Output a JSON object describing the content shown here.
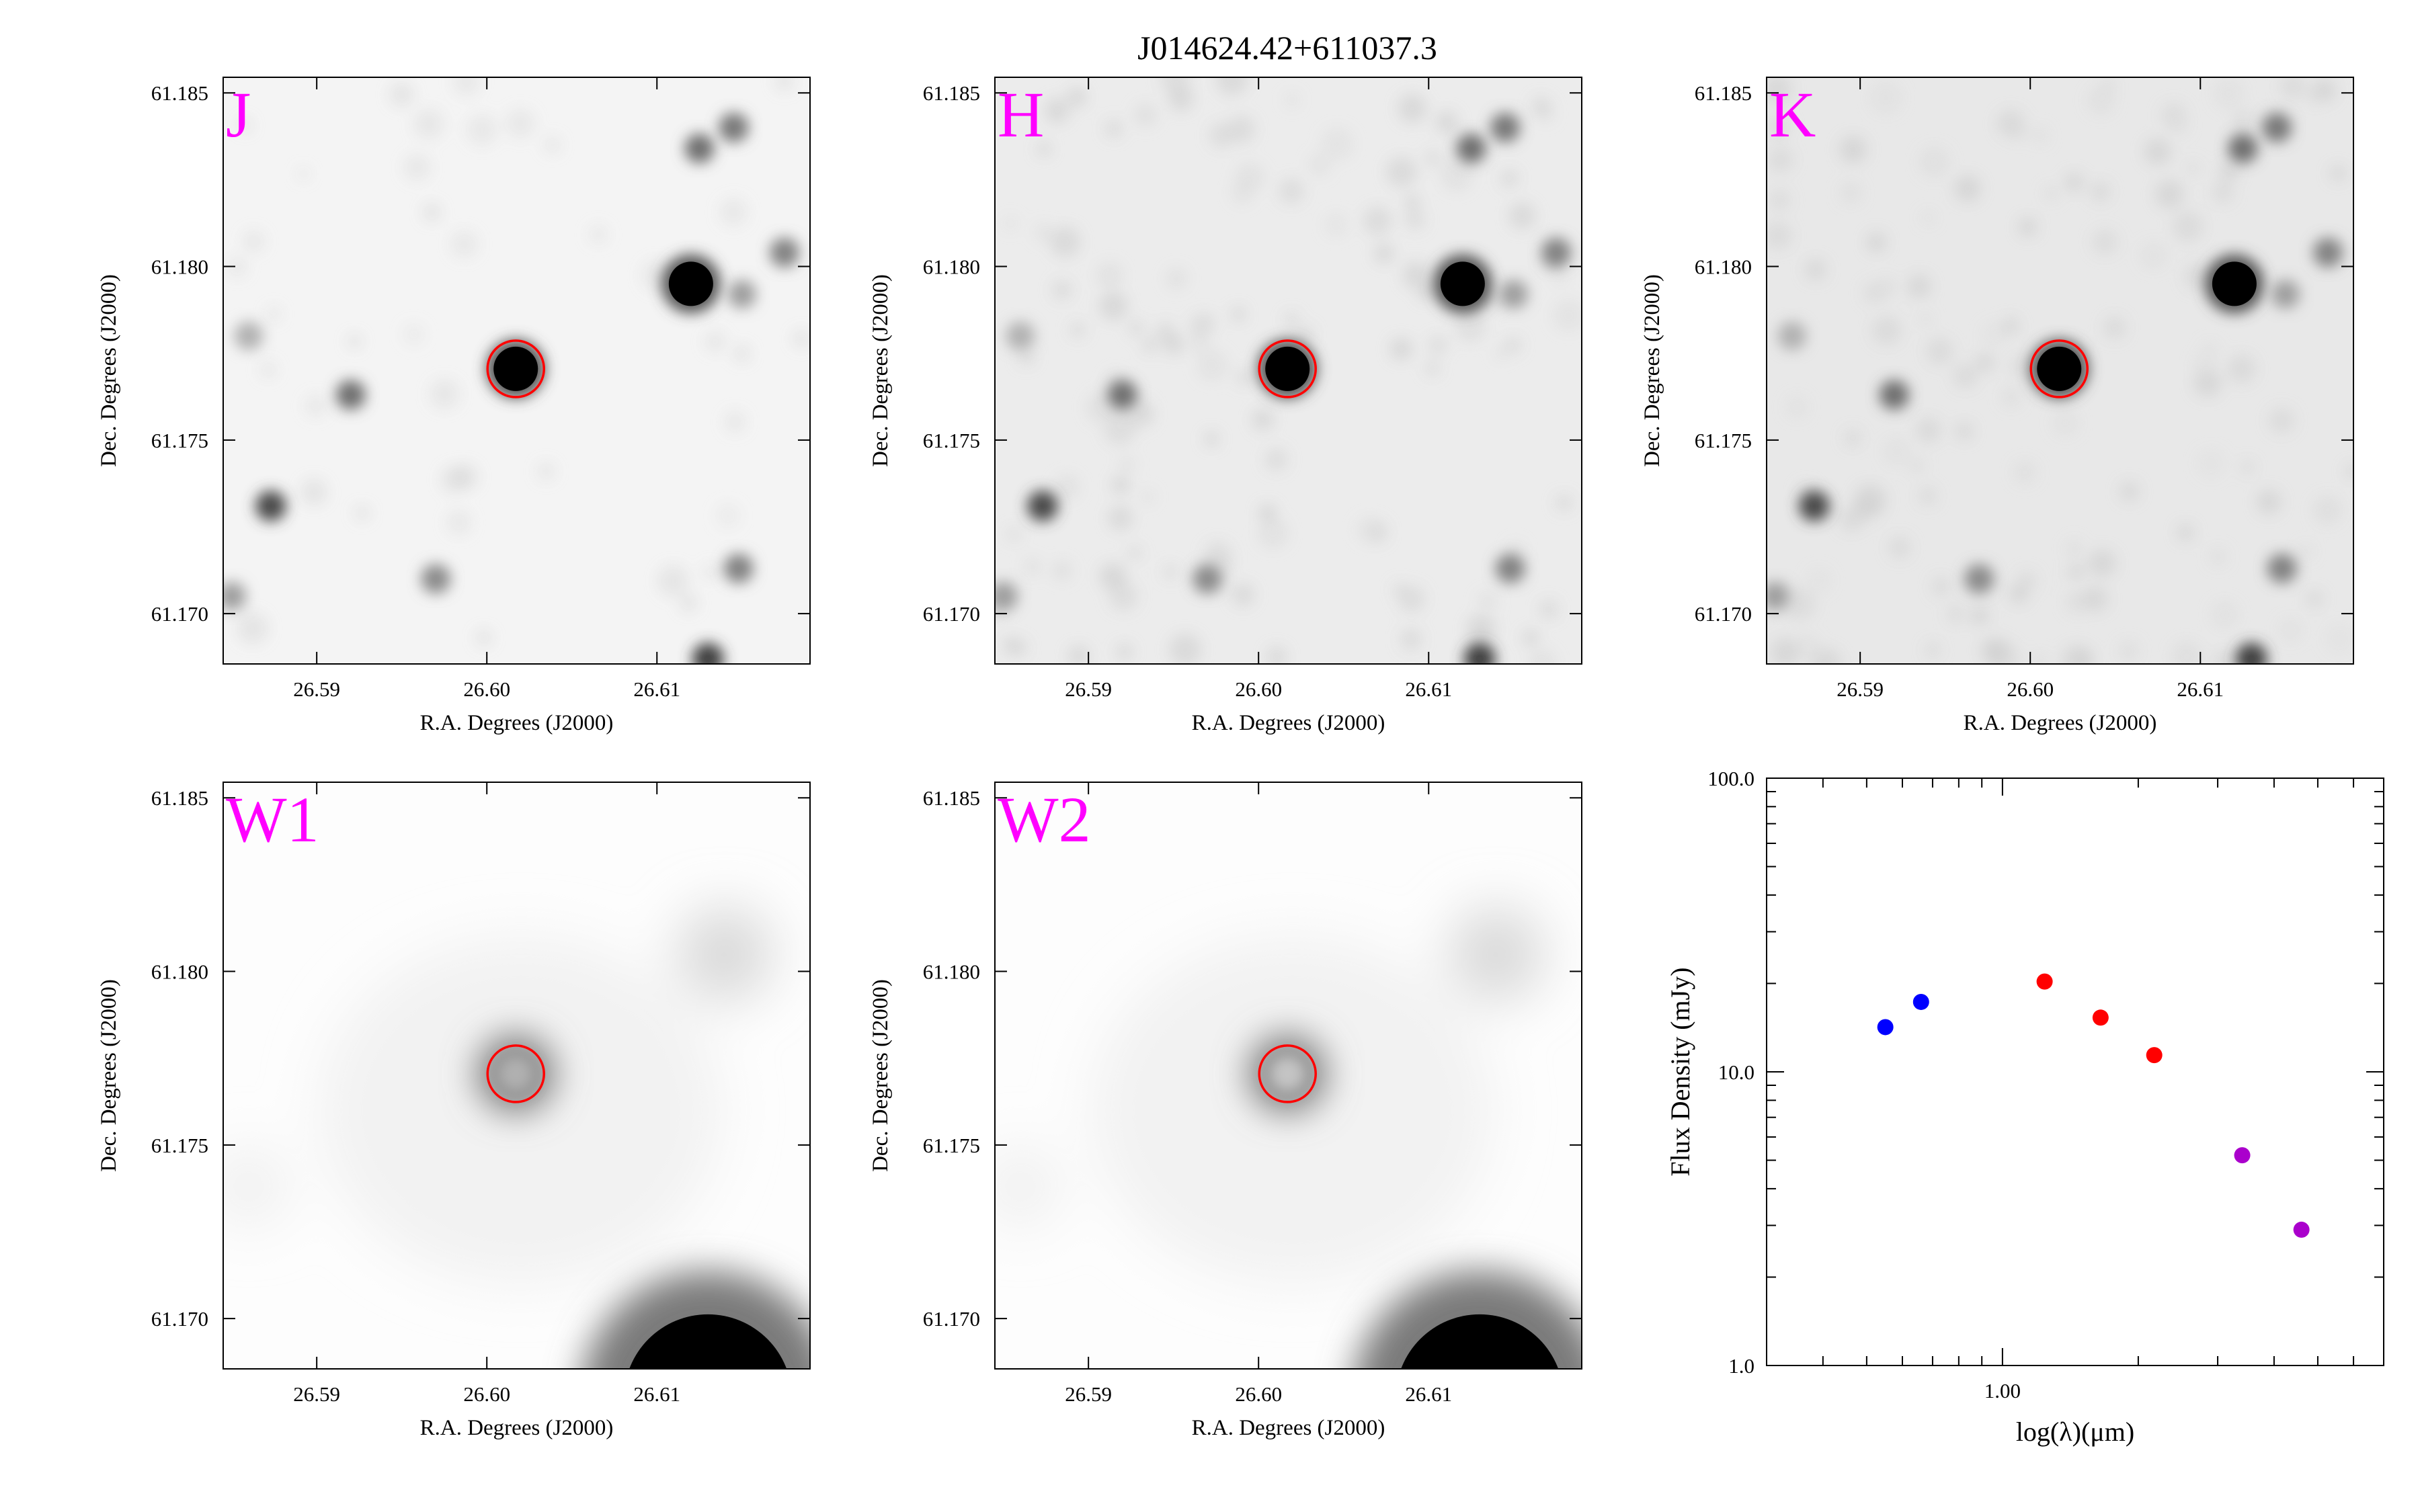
{
  "title": "J014624.42+611037.3",
  "image_panels": [
    {
      "band": "J",
      "style": "2mass"
    },
    {
      "band": "H",
      "style": "2mass"
    },
    {
      "band": "K",
      "style": "2mass"
    },
    {
      "band": "W1",
      "style": "wise",
      "ring": "#b0b0b0"
    },
    {
      "band": "W2",
      "style": "wise",
      "ring": "#c4c4c4"
    }
  ],
  "image_axes": {
    "xlabel": "R.A. Degrees (J2000)",
    "ylabel": "Dec. Degrees (J2000)",
    "xticks": [
      "26.59",
      "26.60",
      "26.61"
    ],
    "yticks": [
      "61.185",
      "61.180",
      "61.175",
      "61.170"
    ]
  },
  "colors": {
    "band_label": "#ff00ff",
    "target_circle": "#ff0000",
    "sed_2mass": "#ff0000",
    "sed_optical": "#0000ff",
    "sed_wise": "#aa00cc"
  },
  "chart_data": {
    "type": "scatter",
    "xlabel": "log(λ)(μm)",
    "ylabel": "Flux Density (mJy)",
    "x_scale": "log",
    "y_scale": "log",
    "xlim": [
      0.3,
      7.0
    ],
    "ylim": [
      1.0,
      100.0
    ],
    "xticks": [
      "1.00"
    ],
    "yticks": [
      "1.0",
      "10.0",
      "100.0"
    ],
    "grid": false,
    "series": [
      {
        "color": "#0000ff",
        "x": [
          0.55,
          0.66
        ],
        "y": [
          14.2,
          17.3
        ]
      },
      {
        "color": "#ff0000",
        "x": [
          1.24,
          1.65,
          2.17
        ],
        "y": [
          20.3,
          15.3,
          11.4
        ]
      },
      {
        "color": "#aa00cc",
        "x": [
          3.4,
          4.6
        ],
        "y": [
          5.2,
          2.9
        ]
      }
    ]
  }
}
